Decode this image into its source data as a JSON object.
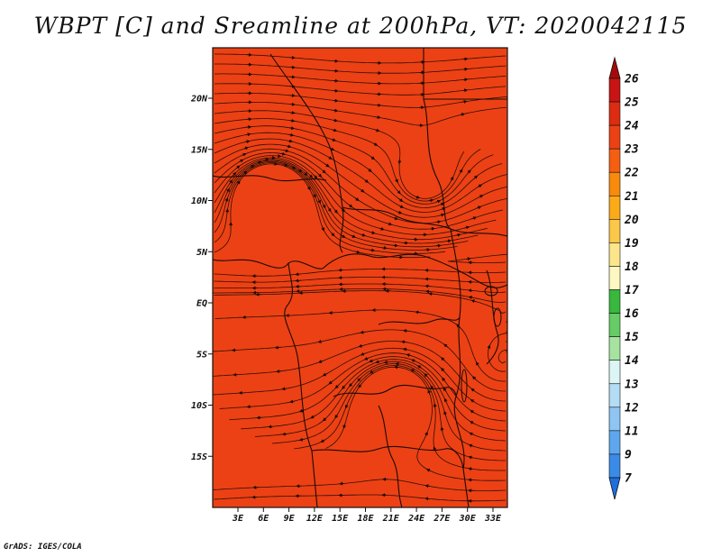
{
  "title": "WBPT [C] and Sreamline at 200hPa, VT: 2020042115",
  "footer": "GrADS: IGES/COLA",
  "map": {
    "field_color": "#ec4114",
    "xaxis": {
      "ticks": [
        {
          "lon": 3,
          "label": "3E"
        },
        {
          "lon": 6,
          "label": "6E"
        },
        {
          "lon": 9,
          "label": "9E"
        },
        {
          "lon": 12,
          "label": "12E"
        },
        {
          "lon": 15,
          "label": "15E"
        },
        {
          "lon": 18,
          "label": "18E"
        },
        {
          "lon": 21,
          "label": "21E"
        },
        {
          "lon": 24,
          "label": "24E"
        },
        {
          "lon": 27,
          "label": "27E"
        },
        {
          "lon": 30,
          "label": "30E"
        },
        {
          "lon": 33,
          "label": "33E"
        }
      ]
    },
    "yaxis": {
      "ticks": [
        {
          "lat": 20,
          "label": "20N"
        },
        {
          "lat": 15,
          "label": "15N"
        },
        {
          "lat": 10,
          "label": "10N"
        },
        {
          "lat": 5,
          "label": "5N"
        },
        {
          "lat": 0,
          "label": "EQ"
        },
        {
          "lat": -5,
          "label": "5S"
        },
        {
          "lat": -10,
          "label": "10S"
        },
        {
          "lat": -15,
          "label": "15S"
        }
      ]
    }
  },
  "colorbar": {
    "labels": [
      "26",
      "25",
      "24",
      "23",
      "22",
      "21",
      "20",
      "19",
      "18",
      "17",
      "16",
      "15",
      "14",
      "13",
      "12",
      "11",
      "9",
      "7"
    ],
    "colors": [
      "#a50a0a",
      "#c81414",
      "#dc2c12",
      "#ec4114",
      "#f45f12",
      "#f88a0c",
      "#fbaa18",
      "#fcc84a",
      "#fde58c",
      "#fdf8c2",
      "#38b83c",
      "#66cc66",
      "#a6e3a0",
      "#dcf5f5",
      "#b4dcf5",
      "#8ec5f2",
      "#5ea7ee",
      "#3a8be8",
      "#1f6ee0"
    ]
  }
}
